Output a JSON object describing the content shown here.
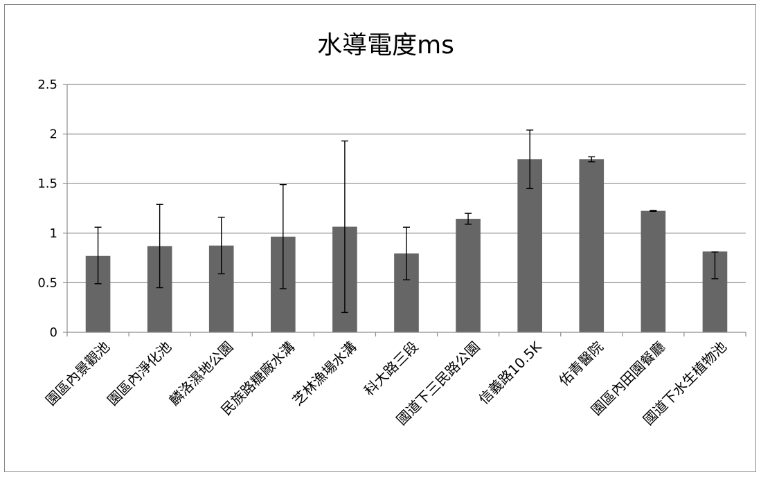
{
  "chart_data": {
    "type": "bar",
    "title": "水導電度ms",
    "xlabel": "",
    "ylabel": "",
    "ylim": [
      0,
      2.5
    ],
    "yticks": [
      "0",
      "0.5",
      "1",
      "1.5",
      "2",
      "2.5"
    ],
    "ytick_values": [
      0,
      0.5,
      1,
      1.5,
      2,
      2.5
    ],
    "grid": true,
    "legend": "none",
    "bar_color": "#666666",
    "grid_color": "#8c8c8c",
    "categories": [
      "園區內景觀池",
      "園區內淨化池",
      "麟洛濕地公園",
      "民族路糖廠水溝",
      "芝林漁場水溝",
      "科大路三段",
      "國道下三民路公園",
      "信義路10.5K",
      "佑青醫院",
      "園區內田園餐廳",
      "國道下水生植物池"
    ],
    "series": [
      {
        "values": [
          0.77,
          0.87,
          0.875,
          0.965,
          1.065,
          0.795,
          1.145,
          1.745,
          1.745,
          1.225,
          0.815
        ],
        "error_low": [
          0.49,
          0.45,
          0.59,
          0.44,
          0.2,
          0.53,
          1.09,
          1.45,
          1.72,
          1.22,
          0.54
        ],
        "error_high": [
          1.06,
          1.29,
          1.16,
          1.49,
          1.93,
          1.06,
          1.2,
          2.04,
          1.77,
          1.23,
          0.81
        ]
      }
    ]
  }
}
